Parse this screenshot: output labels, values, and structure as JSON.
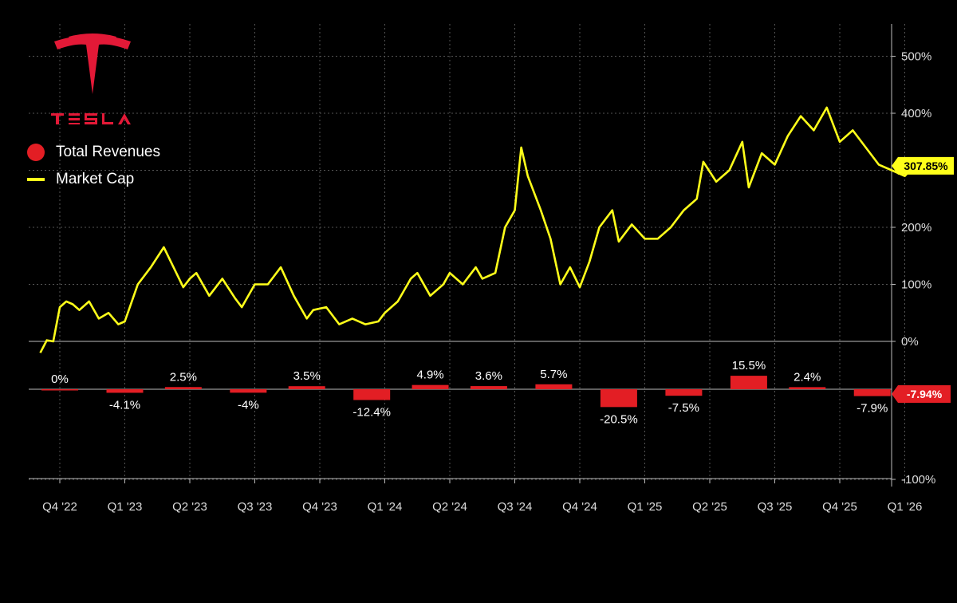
{
  "brand": {
    "wordmark": "TESLA",
    "logo_color": "#e31937"
  },
  "legend": {
    "items": [
      {
        "label": "Total Revenues",
        "color": "#e31e24",
        "marker": "dot"
      },
      {
        "label": "Market Cap",
        "color": "#ffff1a",
        "marker": "line"
      }
    ]
  },
  "chart_data": {
    "type": "bar+line",
    "grid": true,
    "legend_position": "top-left",
    "x_categories": [
      "Q4 '22",
      "Q1 '23",
      "Q2 '23",
      "Q3 '23",
      "Q4 '23",
      "Q1 '24",
      "Q2 '24",
      "Q3 '24",
      "Q4 '24",
      "Q1 '25",
      "Q2 '25",
      "Q3 '25",
      "Q4 '25",
      "Q1 '26"
    ],
    "y_right_ticks": [
      {
        "value": 500,
        "label": "500%"
      },
      {
        "value": 400,
        "label": "400%"
      },
      {
        "value": 200,
        "label": "200%"
      },
      {
        "value": 100,
        "label": "100%"
      },
      {
        "value": 0,
        "label": "0%"
      },
      {
        "value": -100,
        "label": "-100%"
      }
    ],
    "market_cap_panel": {
      "ylim": [
        -20,
        520
      ]
    },
    "revenue_panel": {
      "ylim": [
        -100,
        100
      ]
    },
    "series": [
      {
        "name": "Total Revenues",
        "kind": "bar",
        "color": "#e31e24",
        "points": [
          {
            "x": 0.0,
            "value": 0,
            "label": "0%"
          },
          {
            "x": 1.0,
            "value": -4.1,
            "label": "-4.1%"
          },
          {
            "x": 1.9,
            "value": 2.5,
            "label": "2.5%"
          },
          {
            "x": 2.9,
            "value": -4.0,
            "label": "-4%"
          },
          {
            "x": 3.8,
            "value": 3.5,
            "label": "3.5%"
          },
          {
            "x": 4.8,
            "value": -12.4,
            "label": "-12.4%"
          },
          {
            "x": 5.7,
            "value": 4.9,
            "label": "4.9%"
          },
          {
            "x": 6.6,
            "value": 3.6,
            "label": "3.6%"
          },
          {
            "x": 7.6,
            "value": 5.7,
            "label": "5.7%"
          },
          {
            "x": 8.6,
            "value": -20.5,
            "label": "-20.5%"
          },
          {
            "x": 9.6,
            "value": -7.5,
            "label": "-7.5%"
          },
          {
            "x": 10.6,
            "value": 15.5,
            "label": "15.5%"
          },
          {
            "x": 11.5,
            "value": 2.4,
            "label": "2.4%"
          },
          {
            "x": 12.5,
            "value": -7.9,
            "label": "-7.9%"
          }
        ],
        "last_value_label": "-7.94%"
      },
      {
        "name": "Market Cap",
        "kind": "line",
        "color": "#ffff1a",
        "x": [
          -0.3,
          -0.2,
          -0.1,
          0.0,
          0.1,
          0.2,
          0.3,
          0.45,
          0.6,
          0.75,
          0.9,
          1.0,
          1.2,
          1.4,
          1.6,
          1.75,
          1.9,
          2.0,
          2.1,
          2.3,
          2.5,
          2.7,
          2.8,
          3.0,
          3.2,
          3.4,
          3.6,
          3.8,
          3.9,
          4.1,
          4.3,
          4.5,
          4.7,
          4.9,
          5.0,
          5.2,
          5.4,
          5.5,
          5.7,
          5.9,
          6.0,
          6.2,
          6.4,
          6.5,
          6.7,
          6.85,
          7.0,
          7.1,
          7.2,
          7.4,
          7.55,
          7.7,
          7.85,
          8.0,
          8.15,
          8.3,
          8.5,
          8.6,
          8.8,
          9.0,
          9.2,
          9.4,
          9.6,
          9.8,
          9.9,
          10.1,
          10.3,
          10.5,
          10.6,
          10.8,
          11.0,
          11.2,
          11.4,
          11.6,
          11.8,
          12.0,
          12.2,
          12.4,
          12.6,
          12.8,
          13.0,
          13.15
        ],
        "values": [
          -20,
          2,
          0,
          60,
          70,
          65,
          55,
          70,
          40,
          50,
          30,
          35,
          100,
          130,
          165,
          130,
          95,
          110,
          120,
          80,
          110,
          75,
          60,
          100,
          100,
          130,
          80,
          40,
          55,
          60,
          30,
          40,
          30,
          35,
          50,
          70,
          110,
          120,
          80,
          100,
          120,
          100,
          130,
          110,
          120,
          200,
          230,
          340,
          290,
          230,
          180,
          100,
          130,
          95,
          140,
          200,
          230,
          175,
          205,
          180,
          180,
          200,
          230,
          250,
          315,
          280,
          300,
          350,
          270,
          330,
          310,
          360,
          395,
          370,
          410,
          350,
          370,
          340,
          310,
          300,
          290,
          307.85
        ],
        "last_value_label": "307.85%"
      }
    ]
  }
}
